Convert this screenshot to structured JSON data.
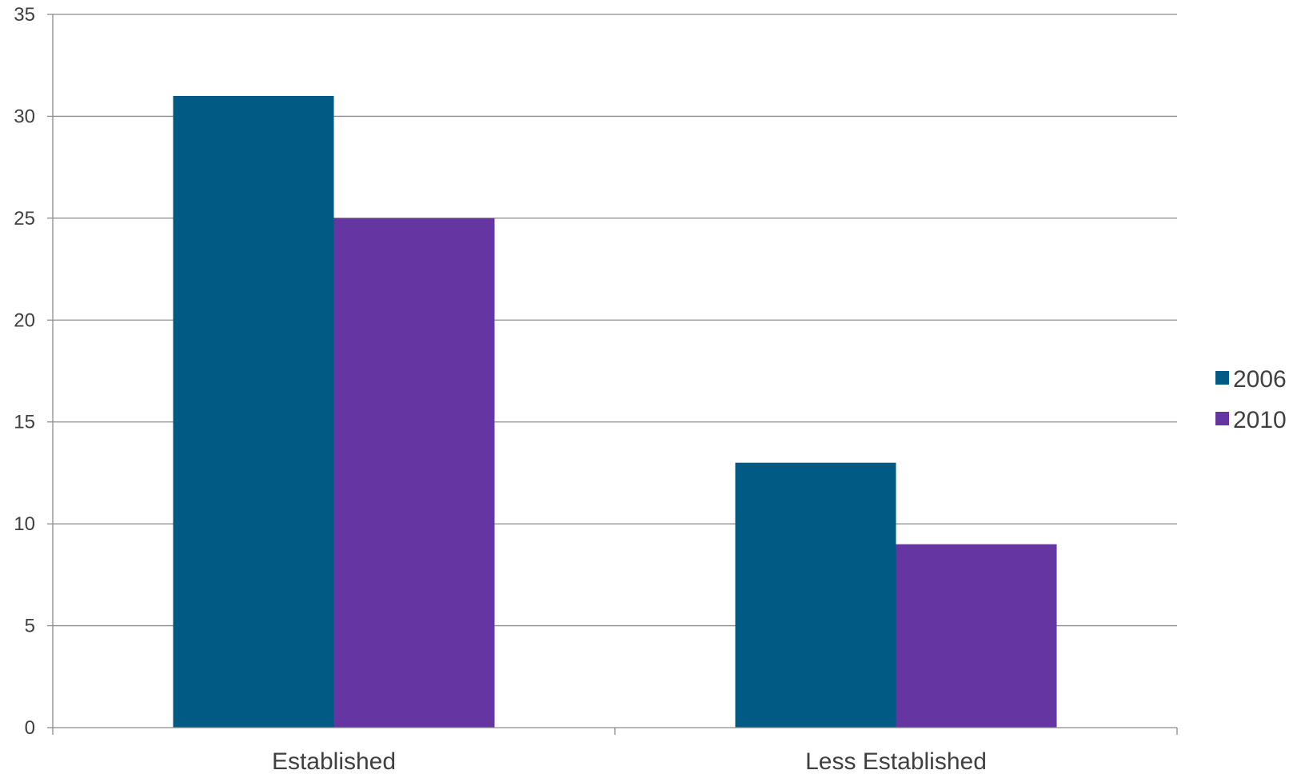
{
  "chart_data": {
    "type": "bar",
    "categories": [
      "Established",
      "Less Established"
    ],
    "series": [
      {
        "name": "2006",
        "values": [
          31,
          13
        ],
        "color": "#005A84"
      },
      {
        "name": "2010",
        "values": [
          25,
          9
        ],
        "color": "#6535A2"
      }
    ],
    "ylim": [
      0,
      35
    ],
    "yticks": [
      "0",
      "5",
      "10",
      "15",
      "20",
      "25",
      "30",
      "35"
    ],
    "grid": true,
    "legend_position": "right",
    "title": "",
    "xlabel": "",
    "ylabel": ""
  }
}
